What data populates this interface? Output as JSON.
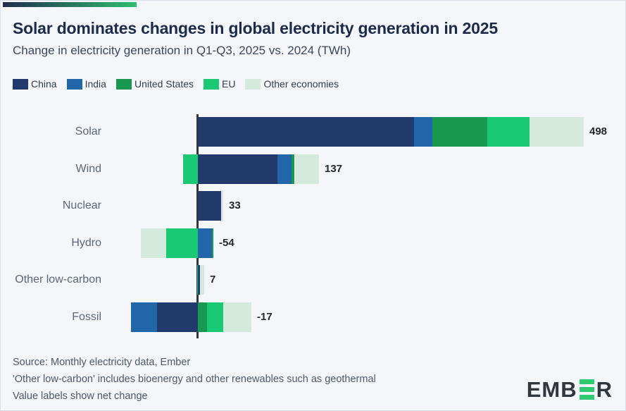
{
  "header": {
    "title": "Solar dominates changes in global electricity generation in 2025",
    "subtitle": "Change in electricity generation in Q1-Q3, 2025 vs. 2024 (TWh)"
  },
  "chart_data": {
    "type": "bar",
    "orientation": "horizontal",
    "stacked": true,
    "unit": "TWh",
    "legend_position": "top",
    "grid": false,
    "categories": [
      "Solar",
      "Wind",
      "Nuclear",
      "Hydro",
      "Other low-carbon",
      "Fossil"
    ],
    "net_values": [
      498,
      137,
      33,
      -54,
      7,
      -17
    ],
    "net_labels": [
      "498",
      "137",
      "33",
      "-54",
      "7",
      "-17"
    ],
    "series": [
      {
        "name": "China",
        "color": "#233A6C",
        "values": [
          279,
          103,
          30,
          0,
          3,
          -53
        ]
      },
      {
        "name": "India",
        "color": "#2066A8",
        "values": [
          24,
          18,
          0,
          18,
          0,
          -33
        ]
      },
      {
        "name": "United States",
        "color": "#17994F",
        "values": [
          71,
          4,
          0,
          2,
          0,
          12
        ]
      },
      {
        "name": "EU",
        "color": "#19C973",
        "values": [
          54,
          -19,
          0,
          -41,
          -1,
          21
        ]
      },
      {
        "name": "Other economies",
        "color": "#D3EADD",
        "values": [
          70,
          31,
          3,
          -33,
          5,
          36
        ]
      }
    ]
  },
  "footer": {
    "lines": [
      "Source: Monthly electricity data, Ember",
      "'Other low-carbon' includes bioenergy and other renewables such as geothermal",
      "Value labels show net change"
    ]
  },
  "logo": {
    "text_left": "EMB",
    "text_right": "R"
  },
  "colors": {
    "background": "#F4F6FA",
    "title": "#1A2B4C",
    "axis": "#33383F",
    "logo_green": "#2FCB72",
    "strip_gradient_start": "#212D4E",
    "strip_gradient_end": "#2FBD6C"
  }
}
